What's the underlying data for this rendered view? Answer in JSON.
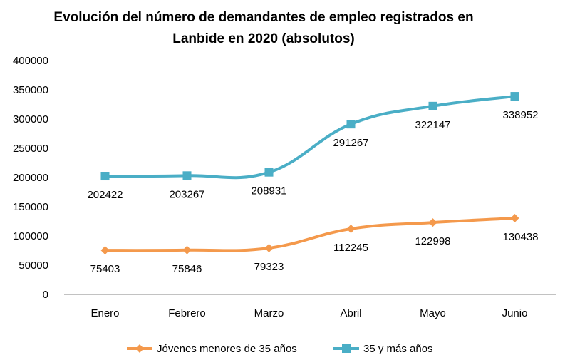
{
  "chart_data": {
    "type": "line",
    "title_line1": "Evolución del número de demandantes de empleo registrados en",
    "title_line2": "Lanbide en 2020 (absolutos)",
    "categories": [
      "Enero",
      "Febrero",
      "Marzo",
      "Abril",
      "Mayo",
      "Junio"
    ],
    "ylim": [
      0,
      400000
    ],
    "yticks": [
      "0",
      "50000",
      "100000",
      "150000",
      "200000",
      "250000",
      "300000",
      "350000",
      "400000"
    ],
    "grid": false,
    "legend_position": "bottom",
    "series": [
      {
        "name": "Jóvenes menores de 35 años",
        "color": "#f4994c",
        "marker": "diamond",
        "values": [
          75403,
          75846,
          79323,
          112245,
          122998,
          130438
        ],
        "labels": [
          "75403",
          "75846",
          "79323",
          "112245",
          "122998",
          "130438"
        ]
      },
      {
        "name": "35 y más años",
        "color": "#4aaec6",
        "marker": "square",
        "values": [
          202422,
          203267,
          208931,
          291267,
          322147,
          338952
        ],
        "labels": [
          "202422",
          "203267",
          "208931",
          "291267",
          "322147",
          "338952"
        ]
      }
    ]
  }
}
